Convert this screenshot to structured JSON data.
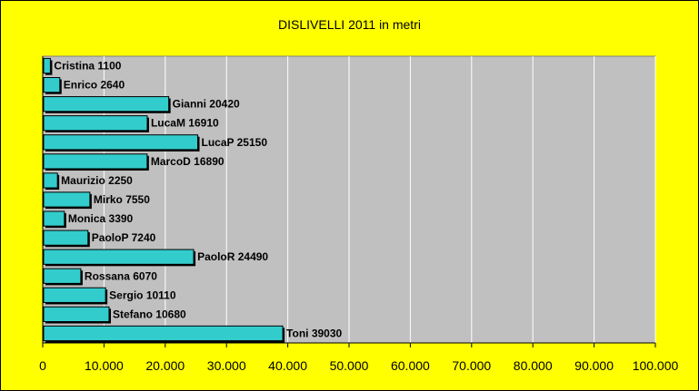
{
  "chart_data": {
    "type": "bar",
    "orientation": "horizontal",
    "title": "DISLIVELLI 2011 in metri",
    "categories": [
      "Cristina",
      "Enrico",
      "Gianni",
      "LucaM",
      "LucaP",
      "MarcoD",
      "Maurizio",
      "Mirko",
      "Monica",
      "PaoloP",
      "PaoloR",
      "Rossana",
      "Sergio",
      "Stefano",
      "Toni"
    ],
    "values": [
      1100,
      2640,
      20420,
      16910,
      25150,
      16890,
      2250,
      7550,
      3390,
      7240,
      24490,
      6070,
      10110,
      10680,
      39030
    ],
    "data_labels": [
      "Cristina 1100",
      "Enrico 2640",
      "Gianni 20420",
      "LucaM 16910",
      "LucaP 25150",
      "MarcoD 16890",
      "Maurizio 2250",
      "Mirko 7550",
      "Monica 3390",
      "PaoloP 7240",
      "PaoloR 24490",
      "Rossana 6070",
      "Sergio 10110",
      "Stefano 10680",
      "Toni 39030"
    ],
    "xlim": [
      0,
      100000
    ],
    "x_ticks": [
      0,
      10000,
      20000,
      30000,
      40000,
      50000,
      60000,
      70000,
      80000,
      90000,
      100000
    ],
    "x_tick_labels": [
      "0",
      "10.000",
      "20.000",
      "30.000",
      "40.000",
      "50.000",
      "60.000",
      "70.000",
      "80.000",
      "90.000",
      "100.000"
    ],
    "grid": "vertical",
    "legend": "none",
    "colors": {
      "background": "#ffff00",
      "plot_area": "#c0c0c0",
      "bar_fill": "#33cccc",
      "bar_stroke": "#000000",
      "bar_shadow": "#000000",
      "gridline": "#ffffff"
    }
  }
}
